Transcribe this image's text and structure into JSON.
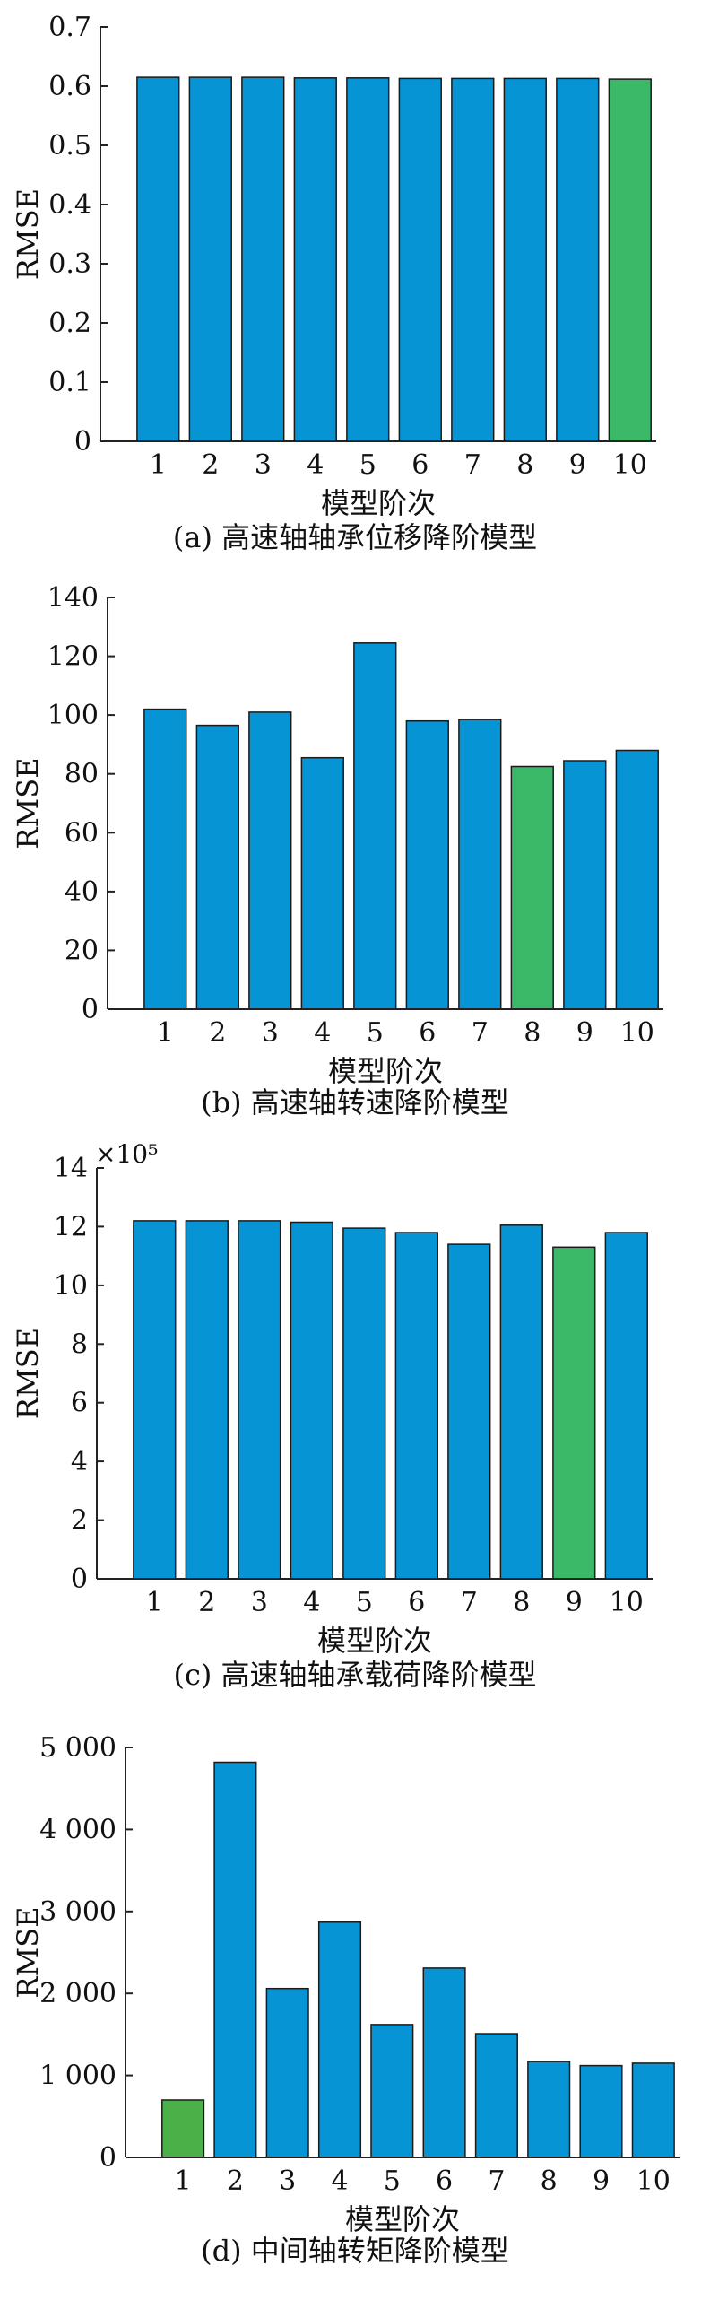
{
  "colors": {
    "bar_default": "#0694d4",
    "bar_highlight": "#3cb869",
    "bar_highlight_d": "#4cb048",
    "axis": "#222222",
    "text": "#111111"
  },
  "chart_data": [
    {
      "id": "a",
      "type": "bar",
      "caption": "(a) 高速轴轴承位移降阶模型",
      "xlabel": "模型阶次",
      "ylabel": "RMSE",
      "exponent_label": "",
      "categories": [
        "1",
        "2",
        "3",
        "4",
        "5",
        "6",
        "7",
        "8",
        "9",
        "10"
      ],
      "values": [
        0.615,
        0.615,
        0.615,
        0.614,
        0.614,
        0.613,
        0.613,
        0.613,
        0.613,
        0.612
      ],
      "highlight_index": 9,
      "ylim": [
        0,
        0.7
      ],
      "yticks": [
        0,
        0.1,
        0.2,
        0.3,
        0.4,
        0.5,
        0.6,
        0.7
      ],
      "ytick_labels": [
        "0",
        "0.1",
        "0.2",
        "0.3",
        "0.4",
        "0.5",
        "0.6",
        "0.7"
      ],
      "grid": false
    },
    {
      "id": "b",
      "type": "bar",
      "caption": "(b) 高速轴转速降阶模型",
      "xlabel": "模型阶次",
      "ylabel": "RMSE",
      "exponent_label": "",
      "categories": [
        "1",
        "2",
        "3",
        "4",
        "5",
        "6",
        "7",
        "8",
        "9",
        "10"
      ],
      "values": [
        102,
        96.5,
        101,
        85.5,
        124.5,
        98,
        98.5,
        82.5,
        84.5,
        88
      ],
      "highlight_index": 7,
      "ylim": [
        0,
        140
      ],
      "yticks": [
        0,
        20,
        40,
        60,
        80,
        100,
        120,
        140
      ],
      "ytick_labels": [
        "0",
        "20",
        "40",
        "60",
        "80",
        "100",
        "120",
        "140"
      ],
      "grid": false
    },
    {
      "id": "c",
      "type": "bar",
      "caption": "(c) 高速轴轴承载荷降阶模型",
      "xlabel": "模型阶次",
      "ylabel": "RMSE",
      "exponent_label": "×10⁵",
      "categories": [
        "1",
        "2",
        "3",
        "4",
        "5",
        "6",
        "7",
        "8",
        "9",
        "10"
      ],
      "values": [
        12.2,
        12.2,
        12.2,
        12.15,
        11.95,
        11.8,
        11.4,
        12.05,
        11.3,
        11.8
      ],
      "highlight_index": 8,
      "ylim": [
        0,
        14
      ],
      "yticks": [
        0,
        2,
        4,
        6,
        8,
        10,
        12,
        14
      ],
      "ytick_labels": [
        "0",
        "2",
        "4",
        "6",
        "8",
        "10",
        "12",
        "14"
      ],
      "grid": false
    },
    {
      "id": "d",
      "type": "bar",
      "caption": "(d) 中间轴转矩降阶模型",
      "xlabel": "模型阶次",
      "ylabel": "RMSE",
      "exponent_label": "",
      "categories": [
        "1",
        "2",
        "3",
        "4",
        "5",
        "6",
        "7",
        "8",
        "9",
        "10"
      ],
      "values": [
        700,
        4820,
        2060,
        2870,
        1620,
        2310,
        1510,
        1170,
        1120,
        1150
      ],
      "highlight_index": 0,
      "ylim": [
        0,
        5000
      ],
      "yticks": [
        0,
        1000,
        2000,
        3000,
        4000,
        5000
      ],
      "ytick_labels": [
        "0",
        "1 000",
        "2 000",
        "3 000",
        "4 000",
        "5 000"
      ],
      "grid": false
    }
  ]
}
